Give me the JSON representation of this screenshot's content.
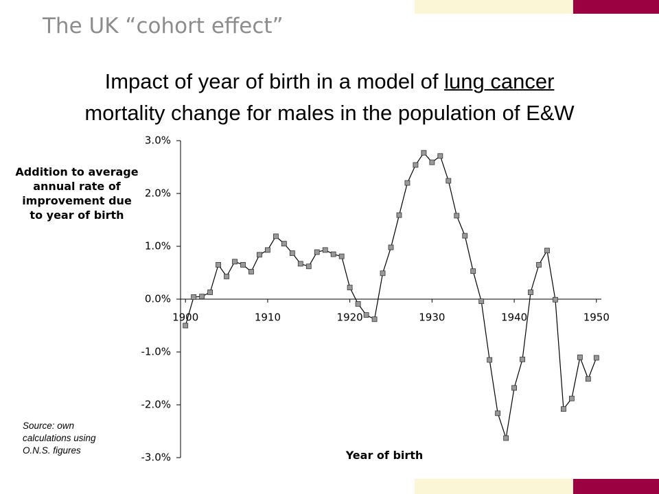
{
  "slide_title": "The UK “cohort effect”",
  "heading": {
    "line1_start": "Impact of year of birth in a model of ",
    "line1_underlined": "lung cancer",
    "line2": "mortality change for males in the population of E&W"
  },
  "source_note": "Source: own calculations using O.N.S. figures",
  "chart_data": {
    "type": "line",
    "y_label": "Addition to average annual rate of improvement due to year of birth",
    "x_label": "Year of birth",
    "x": [
      1900,
      1901,
      1902,
      1903,
      1904,
      1905,
      1906,
      1907,
      1908,
      1909,
      1910,
      1911,
      1912,
      1913,
      1914,
      1915,
      1916,
      1917,
      1918,
      1919,
      1920,
      1921,
      1922,
      1923,
      1924,
      1925,
      1926,
      1927,
      1928,
      1929,
      1930,
      1931,
      1932,
      1933,
      1934,
      1935,
      1936,
      1937,
      1938,
      1939,
      1940,
      1941,
      1942,
      1943,
      1944,
      1945,
      1946,
      1947,
      1948,
      1949,
      1950
    ],
    "series": [
      {
        "color": "#000000",
        "marker_color": "#999999",
        "values": [
          -0.5,
          0.04,
          0.05,
          0.13,
          0.65,
          0.43,
          0.71,
          0.65,
          0.52,
          0.84,
          0.93,
          1.19,
          1.05,
          0.87,
          0.67,
          0.62,
          0.89,
          0.93,
          0.85,
          0.81,
          0.22,
          -0.09,
          -0.3,
          -0.38,
          0.49,
          0.98,
          1.59,
          2.2,
          2.54,
          2.77,
          2.59,
          2.71,
          2.24,
          1.58,
          1.2,
          0.53,
          -0.04,
          -1.15,
          -2.16,
          -2.63,
          -1.68,
          -1.14,
          0.13,
          0.65,
          0.92,
          -0.01,
          -2.08,
          -1.88,
          -1.1,
          -1.51,
          -1.11
        ]
      }
    ],
    "xlim": [
      1899.4,
      1950.6
    ],
    "xticks": [
      1900,
      1910,
      1920,
      1930,
      1940,
      1950
    ],
    "ylim": [
      -3,
      3
    ],
    "yticks": [
      {
        "value": 3,
        "label": "3.0%"
      },
      {
        "value": 2,
        "label": "2.0%"
      },
      {
        "value": 1,
        "label": "1.0%"
      },
      {
        "value": 0,
        "label": "0.0%"
      },
      {
        "value": -1,
        "label": "-1.0%"
      },
      {
        "value": -2,
        "label": "-2.0%"
      },
      {
        "value": -3,
        "label": "-3.0%"
      }
    ],
    "grid": false
  }
}
